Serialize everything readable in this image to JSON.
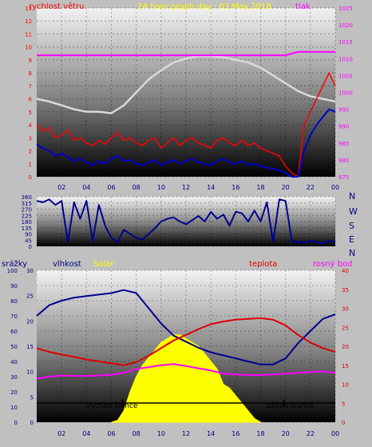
{
  "colors": {
    "frame": "#c0c0c0",
    "wind_speed": "#ff0000",
    "wind_avg": "#0000cc",
    "pressure": "#ff00ff",
    "pressure_series": "#ffffff",
    "direction": "#000090",
    "humidity": "#000090",
    "temperature": "#dd0000",
    "dewpoint": "#ff00ff",
    "solar": "#ffff00",
    "sun_line": "#000000",
    "sun_text": "#ffff00",
    "title": "#ffff00",
    "axis_text": "#000080"
  },
  "header": {
    "wind_label": "rychlost větru",
    "title": "24 hour graph day : 03.May 2018",
    "pressure_label": "tlak"
  },
  "legend2": {
    "rain": "srážky",
    "humidity": "vlhkost",
    "solar": "Solar",
    "temperature": "teplota",
    "dewpoint": "rosný bod"
  },
  "compass": [
    "N",
    "W",
    "S",
    "E",
    "N"
  ],
  "sun": {
    "rise_label": "východ slunce",
    "set_label": "západ slunce"
  },
  "chart_data": [
    {
      "type": "line",
      "panel": "wind-pressure",
      "x_ticks": [
        "02",
        "04",
        "06",
        "08",
        "10",
        "12",
        "14",
        "16",
        "18",
        "20",
        "22",
        "00"
      ],
      "x_range": [
        0,
        24
      ],
      "y_left": {
        "range": [
          0,
          13
        ],
        "ticks": [
          0,
          1,
          2,
          3,
          4,
          5,
          6,
          7,
          8,
          9,
          10,
          11,
          12,
          13
        ]
      },
      "y_right": {
        "range": [
          975,
          1025
        ],
        "ticks": [
          975,
          980,
          985,
          990,
          995,
          1000,
          1005,
          1010,
          1015,
          1020,
          1025
        ]
      },
      "series": [
        {
          "key": "gust",
          "axis": "left",
          "x": [
            0,
            0.5,
            1,
            1.5,
            2,
            2.5,
            3,
            3.5,
            4,
            4.5,
            5,
            5.5,
            6,
            6.5,
            7,
            7.5,
            8,
            8.5,
            9,
            9.5,
            10,
            10.5,
            11,
            11.5,
            12,
            12.5,
            13,
            13.5,
            14,
            14.5,
            15,
            15.5,
            16,
            16.5,
            17,
            17.5,
            18,
            18.5,
            19,
            19.5,
            20,
            20.5,
            21,
            21.5,
            22,
            22.5,
            23,
            23.5,
            24
          ],
          "values": [
            4.0,
            3.5,
            3.8,
            3.0,
            3.2,
            3.6,
            2.8,
            3.0,
            2.6,
            2.4,
            2.8,
            2.5,
            3.0,
            3.4,
            2.8,
            3.0,
            2.6,
            2.4,
            2.8,
            3.0,
            2.2,
            2.6,
            3.0,
            2.4,
            2.8,
            3.0,
            2.6,
            2.4,
            2.2,
            2.8,
            3.0,
            2.6,
            2.4,
            2.8,
            2.4,
            2.6,
            2.2,
            2.0,
            1.8,
            1.6,
            0.8,
            0.3,
            0.0,
            4.0,
            5.0,
            6.0,
            7.0,
            8.0,
            7.0
          ]
        },
        {
          "key": "average",
          "axis": "left",
          "x": [
            0,
            0.5,
            1,
            1.5,
            2,
            2.5,
            3,
            3.5,
            4,
            4.5,
            5,
            5.5,
            6,
            6.5,
            7,
            7.5,
            8,
            8.5,
            9,
            9.5,
            10,
            10.5,
            11,
            11.5,
            12,
            12.5,
            13,
            13.5,
            14,
            14.5,
            15,
            15.5,
            16,
            16.5,
            17,
            17.5,
            18,
            18.5,
            19,
            19.5,
            20,
            20.5,
            21,
            21.5,
            22,
            22.5,
            23,
            23.5,
            24
          ],
          "values": [
            2.5,
            2.2,
            2.0,
            1.6,
            1.8,
            1.5,
            1.2,
            1.4,
            1.1,
            0.9,
            1.2,
            1.0,
            1.4,
            1.6,
            1.2,
            1.3,
            1.0,
            0.9,
            1.1,
            1.3,
            0.9,
            1.1,
            1.3,
            1.0,
            1.2,
            1.4,
            1.1,
            1.0,
            0.9,
            1.2,
            1.4,
            1.1,
            1.0,
            1.2,
            0.9,
            1.0,
            0.8,
            0.7,
            0.6,
            0.5,
            0.3,
            0.0,
            0.0,
            2.0,
            3.2,
            4.0,
            4.6,
            5.2,
            5.0
          ]
        },
        {
          "key": "pressure",
          "axis": "right",
          "x": [
            0,
            1,
            2,
            3,
            4,
            5,
            6,
            7,
            8,
            9,
            10,
            11,
            12,
            13,
            14,
            15,
            16,
            17,
            18,
            19,
            20,
            21,
            22,
            23,
            24
          ],
          "values": [
            1011,
            1011,
            1011,
            1011,
            1011,
            1011,
            1011,
            1011,
            1011,
            1011,
            1011,
            1011,
            1011,
            1011,
            1011,
            1011,
            1011,
            1011,
            1011,
            1011,
            1011,
            1012,
            1012,
            1012,
            1012
          ]
        },
        {
          "key": "pressure_trace",
          "axis": "left",
          "x": [
            0,
            1,
            2,
            3,
            4,
            5,
            6,
            7,
            8,
            9,
            10,
            11,
            12,
            13,
            14,
            15,
            16,
            17,
            18,
            19,
            20,
            21,
            22,
            23,
            24
          ],
          "values": [
            6.0,
            5.8,
            5.5,
            5.2,
            5.0,
            5.0,
            4.9,
            5.5,
            6.5,
            7.5,
            8.2,
            8.8,
            9.1,
            9.3,
            9.3,
            9.2,
            9.0,
            8.8,
            8.4,
            7.8,
            7.2,
            6.6,
            6.2,
            6.0,
            5.8
          ]
        }
      ]
    },
    {
      "type": "line",
      "panel": "wind-direction",
      "x_range": [
        0,
        24
      ],
      "y_range": [
        0,
        360
      ],
      "y_ticks": [
        0,
        45,
        90,
        135,
        180,
        225,
        270,
        315,
        360
      ],
      "series": [
        {
          "key": "direction",
          "x": [
            0,
            0.5,
            1,
            1.5,
            2,
            2.5,
            3,
            3.5,
            4,
            4.5,
            5,
            5.5,
            6,
            6.5,
            7,
            7.5,
            8,
            8.5,
            9,
            9.5,
            10,
            10.5,
            11,
            11.5,
            12,
            12.5,
            13,
            13.5,
            14,
            14.5,
            15,
            15.5,
            16,
            16.5,
            17,
            17.5,
            18,
            18.5,
            19,
            19.5,
            20,
            20.5,
            21,
            21.5,
            22,
            22.5,
            23,
            23.5,
            24
          ],
          "values": [
            330,
            320,
            340,
            300,
            330,
            30,
            320,
            200,
            330,
            40,
            300,
            150,
            60,
            30,
            120,
            90,
            60,
            50,
            90,
            130,
            180,
            200,
            210,
            180,
            160,
            190,
            220,
            180,
            250,
            200,
            230,
            150,
            250,
            240,
            180,
            260,
            180,
            320,
            30,
            340,
            330,
            40,
            30,
            30,
            40,
            30,
            20,
            40,
            30
          ]
        }
      ]
    },
    {
      "type": "line",
      "panel": "humidity-temperature-solar",
      "x_ticks": [
        "02",
        "04",
        "06",
        "08",
        "10",
        "12",
        "14",
        "16",
        "18",
        "20",
        "22",
        "00"
      ],
      "x_range": [
        0,
        24
      ],
      "y_rain": {
        "range": [
          0,
          100
        ],
        "ticks": [
          0,
          10,
          20,
          30,
          40,
          50,
          60,
          70,
          80,
          90,
          100
        ]
      },
      "y_humidity": {
        "range": [
          0,
          30
        ],
        "ticks": [
          0,
          5,
          10,
          15,
          20,
          25,
          30
        ]
      },
      "y_temperature": {
        "range": [
          0,
          40
        ],
        "ticks": [
          0,
          5,
          10,
          15,
          20,
          25,
          30,
          35,
          40
        ]
      },
      "series": [
        {
          "key": "humidity",
          "axis": "humidity",
          "x": [
            0,
            1,
            2,
            3,
            4,
            5,
            6,
            7,
            8,
            9,
            10,
            11,
            12,
            13,
            14,
            15,
            16,
            17,
            18,
            19,
            20,
            21,
            22,
            23,
            24
          ],
          "values": [
            70,
            77,
            80,
            82,
            83,
            84,
            85,
            87,
            85,
            75,
            65,
            57,
            53,
            49,
            46,
            44,
            42,
            40,
            38,
            38,
            42,
            52,
            60,
            68,
            71
          ]
        },
        {
          "key": "temperature",
          "axis": "temperature",
          "x": [
            0,
            1,
            2,
            3,
            4,
            5,
            6,
            7,
            8,
            9,
            10,
            11,
            12,
            13,
            14,
            15,
            16,
            17,
            18,
            19,
            20,
            21,
            22,
            23,
            24
          ],
          "values": [
            19.5,
            18.5,
            17.8,
            17.2,
            16.5,
            16.0,
            15.5,
            15.0,
            15.8,
            17.5,
            19.5,
            21.5,
            23.0,
            24.5,
            25.8,
            26.5,
            27.0,
            27.2,
            27.4,
            27.0,
            25.5,
            23.0,
            21.0,
            19.5,
            18.5
          ]
        },
        {
          "key": "dewpoint",
          "axis": "temperature",
          "x": [
            0,
            1,
            2,
            3,
            4,
            5,
            6,
            7,
            8,
            9,
            10,
            11,
            12,
            13,
            14,
            15,
            16,
            17,
            18,
            19,
            20,
            21,
            22,
            23,
            24
          ],
          "values": [
            11.5,
            12.0,
            12.3,
            12.2,
            12.2,
            12.3,
            12.5,
            13.0,
            14.0,
            14.5,
            15.0,
            15.3,
            14.8,
            14.2,
            13.6,
            12.8,
            12.6,
            12.4,
            12.4,
            12.6,
            12.8,
            13.0,
            13.2,
            13.4,
            13.0
          ]
        },
        {
          "key": "solar",
          "axis": "temperature",
          "x": [
            6.0,
            6.5,
            7.0,
            7.5,
            8.0,
            8.5,
            9.0,
            9.5,
            10.0,
            10.5,
            11.0,
            11.5,
            12.0,
            12.5,
            13.0,
            13.5,
            14.0,
            14.5,
            15.0,
            15.5,
            16.0,
            16.5,
            17.0,
            17.5,
            18.0
          ],
          "values": [
            0,
            0.5,
            3,
            8,
            12,
            15,
            17,
            19,
            21,
            22,
            23,
            23,
            22,
            21,
            20,
            18,
            16,
            14,
            10,
            9,
            7,
            5,
            3,
            1,
            0
          ]
        }
      ],
      "sunrise_hour": 6.9,
      "sunset_hour": 19.9
    }
  ]
}
